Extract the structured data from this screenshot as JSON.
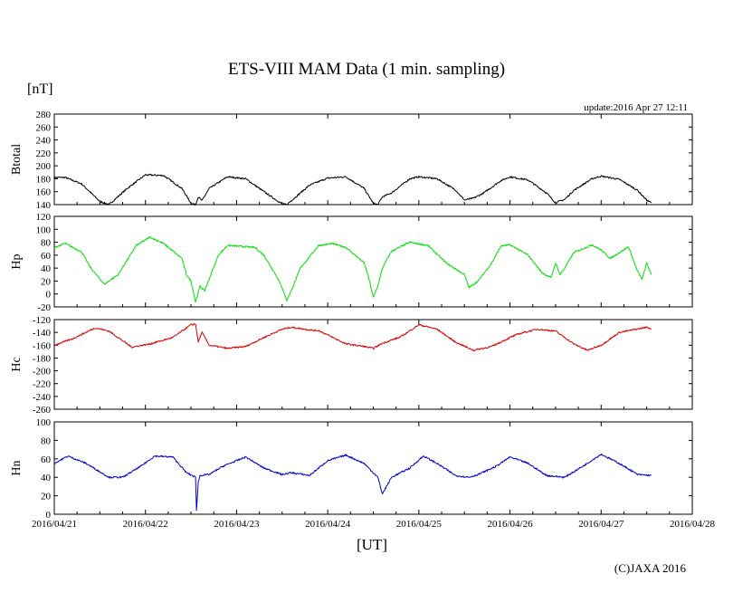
{
  "header": {
    "title": "ETS-VIII MAM Data (1 min. sampling)",
    "unit": "[nT]",
    "update": "update:2016 Apr 27 12:11"
  },
  "footer": {
    "xlabel": "[UT]",
    "credit": "(C)JAXA 2016"
  },
  "chart_data": [
    {
      "type": "line",
      "title": "Btotal",
      "ylabel": "Btotal",
      "ylim": [
        140,
        280
      ],
      "yticks": [
        140,
        160,
        180,
        200,
        220,
        240,
        260,
        280
      ],
      "xlim": [
        0,
        7
      ],
      "xtick_labels": [
        "2016/04/21",
        "2016/04/22",
        "2016/04/23",
        "2016/04/24",
        "2016/04/25",
        "2016/04/26",
        "2016/04/27",
        "2016/04/28"
      ],
      "color": "#000000",
      "series": [
        {
          "name": "Btotal",
          "x": [
            0,
            0.12,
            0.3,
            0.5,
            0.6,
            0.8,
            1.0,
            1.2,
            1.4,
            1.5,
            1.55,
            1.58,
            1.62,
            1.7,
            1.9,
            2.1,
            2.3,
            2.5,
            2.55,
            2.6,
            2.65,
            2.8,
            3.0,
            3.2,
            3.4,
            3.5,
            3.55,
            3.6,
            3.7,
            3.9,
            4.0,
            4.2,
            4.4,
            4.5,
            4.6,
            4.7,
            4.9,
            5.0,
            5.2,
            5.4,
            5.5,
            5.6,
            5.7,
            5.9,
            6.0,
            6.2,
            6.4,
            6.5,
            6.55
          ],
          "y": [
            182,
            182,
            172,
            145,
            140,
            165,
            186,
            185,
            165,
            142,
            140,
            152,
            146,
            165,
            183,
            180,
            160,
            141,
            140,
            146,
            152,
            170,
            181,
            183,
            165,
            142,
            140,
            152,
            158,
            180,
            183,
            180,
            163,
            147,
            150,
            157,
            177,
            183,
            178,
            158,
            143,
            148,
            162,
            180,
            184,
            179,
            162,
            147,
            143
          ]
        }
      ]
    },
    {
      "type": "line",
      "title": "Hp",
      "ylabel": "Hp",
      "ylim": [
        -20,
        120
      ],
      "yticks": [
        -20,
        0,
        20,
        40,
        60,
        80,
        100,
        120
      ],
      "xlim": [
        0,
        7
      ],
      "color": "#00e000",
      "series": [
        {
          "name": "Hp",
          "x": [
            0,
            0.12,
            0.3,
            0.4,
            0.55,
            0.7,
            0.9,
            1.05,
            1.2,
            1.4,
            1.45,
            1.5,
            1.55,
            1.6,
            1.65,
            1.8,
            1.9,
            2.2,
            2.3,
            2.45,
            2.5,
            2.55,
            2.6,
            2.7,
            2.9,
            3.05,
            3.2,
            3.4,
            3.45,
            3.5,
            3.55,
            3.6,
            3.7,
            3.9,
            4.1,
            4.3,
            4.5,
            4.55,
            4.65,
            4.8,
            4.9,
            5.0,
            5.2,
            5.35,
            5.45,
            5.5,
            5.55,
            5.6,
            5.7,
            5.9,
            6.0,
            6.1,
            6.3,
            6.4,
            6.45,
            6.5,
            6.55
          ],
          "y": [
            72,
            78,
            65,
            40,
            15,
            30,
            75,
            88,
            78,
            55,
            30,
            20,
            -12,
            12,
            5,
            60,
            75,
            72,
            60,
            25,
            10,
            -10,
            5,
            40,
            75,
            78,
            72,
            48,
            25,
            -5,
            12,
            40,
            66,
            80,
            75,
            48,
            30,
            10,
            20,
            48,
            74,
            76,
            60,
            33,
            25,
            48,
            30,
            40,
            64,
            76,
            68,
            55,
            73,
            35,
            23,
            48,
            30
          ]
        }
      ]
    },
    {
      "type": "line",
      "title": "Hc",
      "ylabel": "Hc",
      "ylim": [
        -260,
        -120
      ],
      "yticks": [
        -260,
        -240,
        -220,
        -200,
        -180,
        -160,
        -140,
        -120
      ],
      "xlim": [
        0,
        7
      ],
      "color": "#dd0000",
      "series": [
        {
          "name": "Hc",
          "x": [
            0,
            0.2,
            0.45,
            0.6,
            0.85,
            1.05,
            1.3,
            1.5,
            1.55,
            1.58,
            1.62,
            1.7,
            1.9,
            2.1,
            2.3,
            2.5,
            2.6,
            2.85,
            2.9,
            3.2,
            3.4,
            3.5,
            3.6,
            3.8,
            4.0,
            4.2,
            4.4,
            4.6,
            4.8,
            5.0,
            5.1,
            5.3,
            5.5,
            5.7,
            5.85,
            6.0,
            6.2,
            6.5,
            6.55
          ],
          "y": [
            -160,
            -150,
            -133,
            -138,
            -163,
            -158,
            -148,
            -128,
            -127,
            -155,
            -140,
            -160,
            -165,
            -162,
            -148,
            -135,
            -132,
            -137,
            -137,
            -158,
            -162,
            -165,
            -157,
            -147,
            -128,
            -135,
            -155,
            -168,
            -162,
            -148,
            -142,
            -135,
            -138,
            -158,
            -168,
            -160,
            -140,
            -132,
            -134
          ]
        }
      ]
    },
    {
      "type": "line",
      "title": "Hn",
      "ylabel": "Hn",
      "ylim": [
        0,
        100
      ],
      "yticks": [
        0,
        20,
        40,
        60,
        80,
        100
      ],
      "xlim": [
        0,
        7
      ],
      "color": "#0000cc",
      "series": [
        {
          "name": "Hn",
          "x": [
            0,
            0.15,
            0.35,
            0.6,
            0.75,
            0.95,
            1.1,
            1.3,
            1.45,
            1.55,
            1.56,
            1.58,
            1.6,
            1.7,
            1.85,
            2.1,
            2.3,
            2.5,
            2.6,
            2.8,
            3.0,
            3.2,
            3.4,
            3.55,
            3.6,
            3.7,
            3.9,
            4.05,
            4.2,
            4.4,
            4.55,
            4.65,
            4.85,
            5.0,
            5.2,
            5.4,
            5.6,
            5.8,
            6.0,
            6.2,
            6.4,
            6.55
          ],
          "y": [
            55,
            63,
            55,
            40,
            40,
            52,
            63,
            62,
            45,
            40,
            5,
            35,
            42,
            43,
            52,
            62,
            50,
            43,
            45,
            42,
            58,
            64,
            55,
            40,
            22,
            40,
            50,
            63,
            55,
            42,
            40,
            43,
            52,
            62,
            55,
            42,
            40,
            52,
            65,
            55,
            43,
            42
          ]
        }
      ]
    }
  ]
}
